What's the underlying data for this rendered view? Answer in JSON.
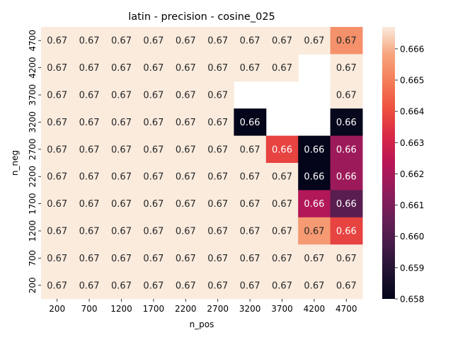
{
  "chart_data": {
    "type": "heatmap",
    "title": "latin - precision - cosine_025",
    "xlabel": "n_pos",
    "ylabel": "n_neg",
    "x": [
      "200",
      "700",
      "1200",
      "1700",
      "2200",
      "2700",
      "3200",
      "3700",
      "4200",
      "4700"
    ],
    "y": [
      "4700",
      "4200",
      "3700",
      "3200",
      "2700",
      "2200",
      "1700",
      "1200",
      "700",
      "200"
    ],
    "values": [
      [
        0.6667,
        0.6667,
        0.6667,
        0.6667,
        0.6667,
        0.6667,
        0.6667,
        0.6667,
        0.6667,
        0.6654
      ],
      [
        0.6667,
        0.6667,
        0.6667,
        0.6667,
        0.6667,
        0.6667,
        0.6667,
        0.6667,
        null,
        0.6667
      ],
      [
        0.6667,
        0.6667,
        0.6667,
        0.6667,
        0.6667,
        0.6667,
        null,
        null,
        null,
        0.6667
      ],
      [
        0.6667,
        0.6667,
        0.6667,
        0.6667,
        0.6667,
        0.6667,
        0.658,
        null,
        null,
        0.6581
      ],
      [
        0.6667,
        0.6667,
        0.6667,
        0.6667,
        0.6667,
        0.6667,
        0.6667,
        0.6638,
        0.658,
        0.6617
      ],
      [
        0.6667,
        0.6667,
        0.6667,
        0.6667,
        0.6667,
        0.6667,
        0.6667,
        0.6667,
        0.658,
        0.6617
      ],
      [
        0.6667,
        0.6667,
        0.6667,
        0.6667,
        0.6667,
        0.6667,
        0.6667,
        0.6667,
        0.6622,
        0.6602
      ],
      [
        0.6667,
        0.6667,
        0.6667,
        0.6667,
        0.6667,
        0.6667,
        0.6667,
        0.6667,
        0.6656,
        0.6638
      ],
      [
        0.6667,
        0.6667,
        0.6667,
        0.6667,
        0.6667,
        0.6667,
        0.6667,
        0.6667,
        0.6667,
        0.6667
      ],
      [
        0.6667,
        0.6667,
        0.6667,
        0.6667,
        0.6667,
        0.6667,
        0.6667,
        0.6667,
        0.6667,
        0.6667
      ]
    ],
    "labels": [
      [
        "0.67",
        "0.67",
        "0.67",
        "0.67",
        "0.67",
        "0.67",
        "0.67",
        "0.67",
        "0.67",
        "0.67"
      ],
      [
        "0.67",
        "0.67",
        "0.67",
        "0.67",
        "0.67",
        "0.67",
        "0.67",
        "0.67",
        "",
        "0.67"
      ],
      [
        "0.67",
        "0.67",
        "0.67",
        "0.67",
        "0.67",
        "0.67",
        "",
        "",
        "",
        "0.67"
      ],
      [
        "0.67",
        "0.67",
        "0.67",
        "0.67",
        "0.67",
        "0.67",
        "0.66",
        "",
        "",
        "0.66"
      ],
      [
        "0.67",
        "0.67",
        "0.67",
        "0.67",
        "0.67",
        "0.67",
        "0.67",
        "0.66",
        "0.66",
        "0.66"
      ],
      [
        "0.67",
        "0.67",
        "0.67",
        "0.67",
        "0.67",
        "0.67",
        "0.67",
        "0.67",
        "0.66",
        "0.66"
      ],
      [
        "0.67",
        "0.67",
        "0.67",
        "0.67",
        "0.67",
        "0.67",
        "0.67",
        "0.67",
        "0.66",
        "0.66"
      ],
      [
        "0.67",
        "0.67",
        "0.67",
        "0.67",
        "0.67",
        "0.67",
        "0.67",
        "0.67",
        "0.67",
        "0.66"
      ],
      [
        "0.67",
        "0.67",
        "0.67",
        "0.67",
        "0.67",
        "0.67",
        "0.67",
        "0.67",
        "0.67",
        "0.67"
      ],
      [
        "0.67",
        "0.67",
        "0.67",
        "0.67",
        "0.67",
        "0.67",
        "0.67",
        "0.67",
        "0.67",
        "0.67"
      ]
    ],
    "colorbar": {
      "min": 0.658,
      "max": 0.6667,
      "ticks": [
        0.658,
        0.659,
        0.66,
        0.661,
        0.662,
        0.663,
        0.664,
        0.665,
        0.666
      ],
      "tick_labels": [
        "0.658",
        "0.659",
        "0.660",
        "0.661",
        "0.662",
        "0.663",
        "0.664",
        "0.665",
        "0.666"
      ],
      "colormap": "rocket"
    },
    "grid": false,
    "legend": "colorbar-right"
  }
}
